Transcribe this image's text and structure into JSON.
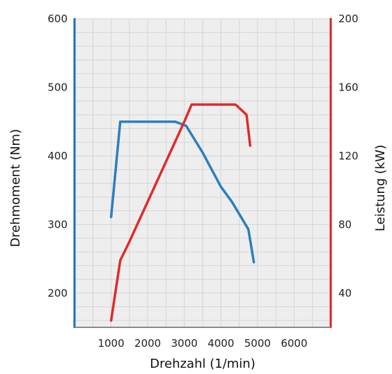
{
  "chart_data": {
    "type": "line",
    "xlabel": "Drehzahl (1/min)",
    "y_left_label": "Drehmoment (Nm)",
    "y_right_label": "Leistung (kW)",
    "x_ticks": [
      1000,
      2000,
      3000,
      4000,
      5000,
      6000
    ],
    "xlim": [
      0,
      7000
    ],
    "y_left_ticks": [
      200,
      300,
      400,
      500,
      600
    ],
    "y_left_lim": [
      150,
      600
    ],
    "y_right_ticks": [
      40,
      80,
      120,
      160,
      200
    ],
    "y_right_lim": [
      20,
      200
    ],
    "grid": true,
    "colors": {
      "torque": "#2b7fbf",
      "power": "#e02a2a",
      "left_axis": "#1a6fb5",
      "right_axis": "#d82222",
      "grid": "#d5d5d5",
      "plot_bg": "#eeeeee"
    },
    "series": [
      {
        "axis": "left",
        "x": [
          1000,
          1250,
          2000,
          2750,
          3050,
          3500,
          4000,
          4300,
          4750,
          4900
        ],
        "y": [
          311,
          450,
          450,
          450,
          444,
          405,
          355,
          333,
          293,
          245
        ]
      },
      {
        "axis": "right",
        "x": [
          1000,
          1250,
          1500,
          3000,
          3200,
          4000,
          4400,
          4700,
          4800
        ],
        "y": [
          24,
          59,
          70,
          140,
          150,
          150,
          150,
          144,
          126
        ]
      }
    ]
  }
}
